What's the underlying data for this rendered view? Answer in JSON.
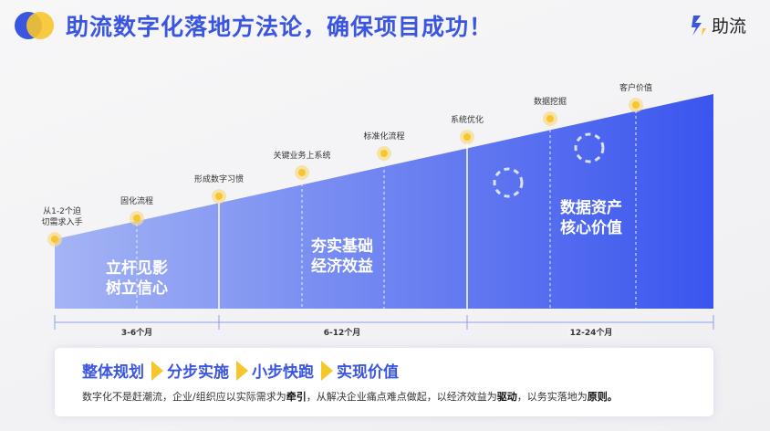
{
  "title": "助流数字化落地方法论，确保项目成功！",
  "brand": "助流",
  "milestones": [
    "从1-2个迫\n切需求入手",
    "固化流程",
    "形成数字习惯",
    "关键业务上系统",
    "标准化流程",
    "系统优化",
    "数据挖掘",
    "客户价值"
  ],
  "stages": [
    "立杆见影\n树立信心",
    "夯实基础\n经济效益",
    "数据资产\n核心价值"
  ],
  "durations": [
    "3-6个月",
    "6-12个月",
    "12-24个月"
  ],
  "steps": [
    "整体规划",
    "分步实施",
    "小步快跑",
    "实现价值"
  ],
  "desc": {
    "p1": "数字化不是赶潮流，企业/组织应以实际需求为",
    "b1": "牵引",
    "p2": "，从解决企业痛点难点做起，以经济效益为",
    "b2": "驱动",
    "p3": "，以务实落地为",
    "b3": "原则。"
  },
  "colors": {
    "accent": "#3a55e0",
    "dot": "#f7c52c"
  }
}
